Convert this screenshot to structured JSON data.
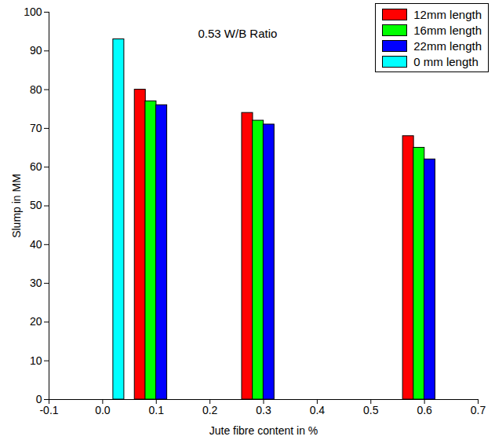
{
  "chart_data": {
    "type": "bar",
    "annotation": "0.53 W/B Ratio",
    "x_label": "Jute fibre content in %",
    "y_label": "Slump in MM",
    "xlim": [
      -0.1,
      0.7
    ],
    "xticks": [
      -0.1,
      {
        "value": 0,
        "label": "0.0"
      },
      0.1,
      0.2,
      0.3,
      0.4,
      0.5,
      0.6,
      0.7
    ],
    "ylim": [
      0,
      100
    ],
    "yticks": [
      0,
      10,
      20,
      30,
      40,
      50,
      60,
      70,
      80,
      90,
      100
    ],
    "legend": "top-right",
    "series": [
      {
        "name": "12mm length",
        "color": "#ff0000",
        "x": [
          0.07,
          0.27,
          0.57
        ],
        "values": [
          80,
          74,
          68
        ]
      },
      {
        "name": "16mm length",
        "color": "#00ff00",
        "x": [
          0.09,
          0.29,
          0.59
        ],
        "values": [
          77,
          72,
          65
        ]
      },
      {
        "name": "22mm length",
        "color": "#0000ff",
        "x": [
          0.11,
          0.31,
          0.61
        ],
        "values": [
          76,
          71,
          62
        ]
      },
      {
        "name": "0 mm length",
        "color": "#00ffff",
        "x": [
          0.03
        ],
        "values": [
          93
        ]
      }
    ]
  }
}
